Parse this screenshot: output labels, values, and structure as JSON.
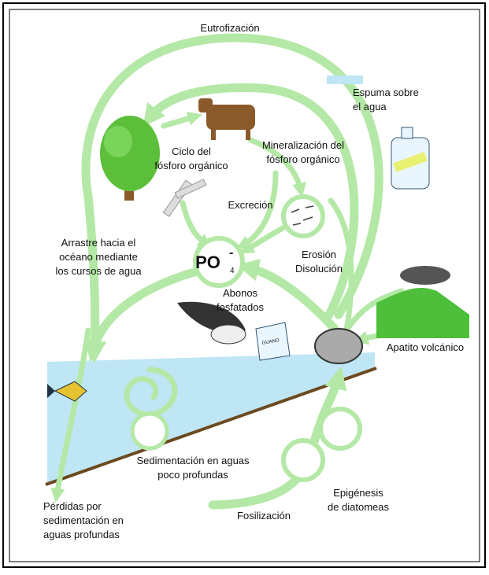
{
  "phosphate": {
    "base": "PO",
    "subscript": "4",
    "charge": "-"
  },
  "labels": [
    {
      "lines": [
        "Eutrofización"
      ]
    },
    {
      "lines": [
        "Espuma sobre",
        "el agua"
      ]
    },
    {
      "lines": [
        "Ciclo del",
        "fósforo orgánico"
      ]
    },
    {
      "lines": [
        "Mineralización del",
        "fósforo orgánico"
      ]
    },
    {
      "lines": [
        "Excreción"
      ]
    },
    {
      "lines": [
        "Arrastre hacia el",
        "océano mediante",
        "los cursos de agua"
      ]
    },
    {
      "lines": [
        "Erosión",
        "Disolución"
      ]
    },
    {
      "lines": [
        "Abonos",
        "fosfatados"
      ]
    },
    {
      "lines": [
        "Apatito volcánico"
      ]
    },
    {
      "lines": [
        "Sedimentación en aguas",
        "poco profundas"
      ]
    },
    {
      "lines": [
        "Epigénesis",
        "de diatomeas"
      ]
    },
    {
      "lines": [
        "Pérdidas por",
        "sedimentación en",
        "aguas profundas"
      ]
    },
    {
      "lines": [
        "Fosilización"
      ]
    }
  ],
  "bag_label": "GUANO"
}
